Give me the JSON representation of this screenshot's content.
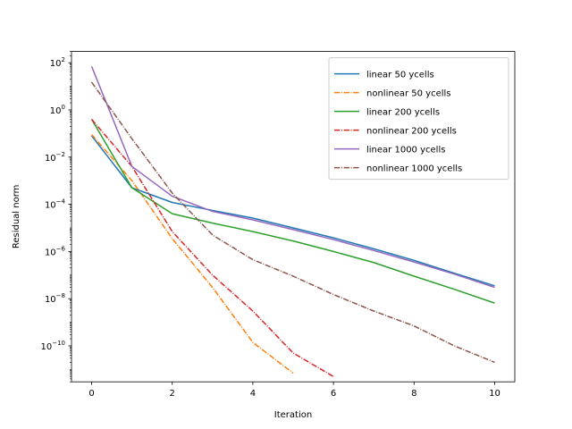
{
  "chart_data": {
    "type": "line",
    "xlabel": "Iteration",
    "ylabel": "Residual norm",
    "yscale": "log",
    "xlim": [
      -0.5,
      10.5
    ],
    "ylim": [
      3e-12,
      300
    ],
    "xticks": [
      0,
      2,
      4,
      6,
      8,
      10
    ],
    "xtick_labels": [
      "0",
      "2",
      "4",
      "6",
      "8",
      "10"
    ],
    "yticks": [
      -10,
      -8,
      -6,
      -4,
      -2,
      0,
      2
    ],
    "ytick_bases": [
      "10",
      "10",
      "10",
      "10",
      "10",
      "10",
      "10"
    ],
    "ytick_exps": [
      "−10",
      "−8",
      "−6",
      "−4",
      "−2",
      "0",
      "2"
    ],
    "grid": false,
    "legend_position": "upper right",
    "series": [
      {
        "name": "linear 50 ycells",
        "color": "#1f77b4",
        "dash": "solid",
        "x": [
          0,
          1,
          2,
          3,
          4,
          5,
          6,
          7,
          8,
          9,
          10
        ],
        "y": [
          0.08,
          0.0005,
          0.00012,
          5.5e-05,
          2.6e-05,
          1e-05,
          3.8e-06,
          1.3e-06,
          4.2e-07,
          1.2e-07,
          3.5e-08
        ]
      },
      {
        "name": "nonlinear 50 ycells",
        "color": "#ff7f0e",
        "dash": "dashdot",
        "x": [
          0,
          1,
          2,
          3,
          4,
          5
        ],
        "y": [
          0.09,
          0.001,
          3.5e-06,
          3e-08,
          1.4e-10,
          7e-12
        ]
      },
      {
        "name": "linear 200 ycells",
        "color": "#2ca02c",
        "dash": "solid",
        "x": [
          0,
          1,
          2,
          3,
          4,
          5,
          6,
          7,
          8,
          9,
          10
        ],
        "y": [
          0.4,
          0.0005,
          4e-05,
          1.6e-05,
          7e-06,
          2.8e-06,
          1e-06,
          3.4e-07,
          9e-08,
          2.5e-08,
          6.5e-09
        ]
      },
      {
        "name": "nonlinear 200 ycells",
        "color": "#d62728",
        "dash": "dashdot",
        "x": [
          0,
          1,
          2,
          3,
          4,
          5,
          6
        ],
        "y": [
          0.4,
          0.004,
          7e-06,
          1e-07,
          3e-09,
          5e-11,
          5e-12
        ]
      },
      {
        "name": "linear 1000 ycells",
        "color": "#9467bd",
        "dash": "solid",
        "x": [
          0,
          1,
          2,
          3,
          4,
          5,
          6,
          7,
          8,
          9,
          10
        ],
        "y": [
          70,
          0.004,
          0.00022,
          5e-05,
          2.2e-05,
          8.5e-06,
          3.2e-06,
          1.1e-06,
          3.6e-07,
          1.1e-07,
          3e-08
        ]
      },
      {
        "name": "nonlinear 1000 ycells",
        "color": "#8c564b",
        "dash": "dashdot",
        "x": [
          0,
          1,
          2,
          3,
          4,
          5,
          6,
          7,
          8,
          9,
          10
        ],
        "y": [
          15,
          0.06,
          0.0003,
          5e-06,
          4.5e-07,
          9e-08,
          1.5e-08,
          3e-09,
          7e-10,
          1e-10,
          2e-11
        ]
      }
    ]
  }
}
